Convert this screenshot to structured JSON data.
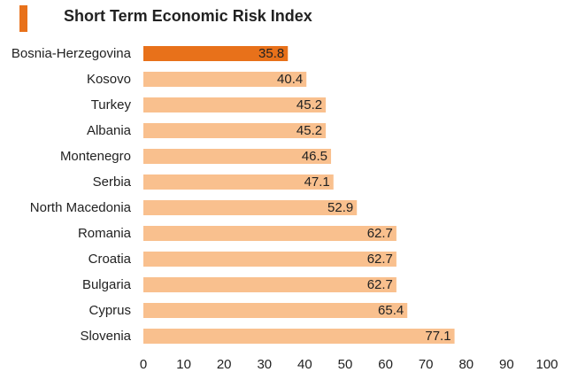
{
  "title": "Short Term Economic Risk Index",
  "colors": {
    "accent": "#e8711a",
    "highlight": "#e8711a",
    "bar": "#f9c08e"
  },
  "chart_data": {
    "type": "bar",
    "orientation": "horizontal",
    "title": "Short Term Economic Risk Index",
    "xlabel": "",
    "ylabel": "",
    "categories": [
      "Bosnia-Herzegovina",
      "Kosovo",
      "Turkey",
      "Albania",
      "Montenegro",
      "Serbia",
      "North Macedonia",
      "Romania",
      "Croatia",
      "Bulgaria",
      "Cyprus",
      "Slovenia"
    ],
    "values": [
      35.8,
      40.4,
      45.2,
      45.2,
      46.5,
      47.1,
      52.9,
      62.7,
      62.7,
      62.7,
      65.4,
      77.1
    ],
    "value_labels": [
      "35.8",
      "40.4",
      "45.2",
      "45.2",
      "46.5",
      "47.1",
      "52.9",
      "62.7",
      "62.7",
      "62.7",
      "65.4",
      "77.1"
    ],
    "highlighted_category": "Bosnia-Herzegovina",
    "xlim": [
      0,
      100
    ],
    "xticks": [
      0,
      10,
      20,
      30,
      40,
      50,
      60,
      70,
      80,
      90,
      100
    ],
    "grid": false,
    "legend": "none"
  }
}
